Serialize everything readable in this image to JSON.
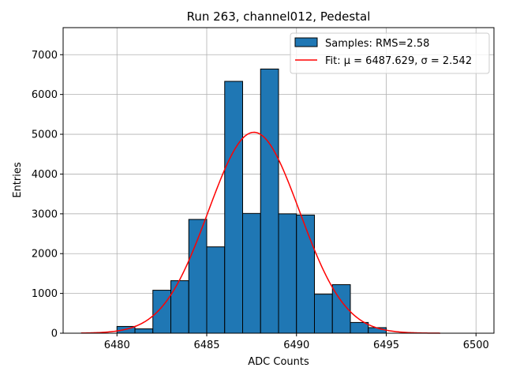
{
  "chart_data": {
    "type": "bar",
    "title": "Run 263, channel012, Pedestal",
    "xlabel": "ADC Counts",
    "ylabel": "Entries",
    "xlim": [
      6477,
      6501
    ],
    "ylim": [
      0,
      7680
    ],
    "xticks": [
      6480,
      6485,
      6490,
      6495,
      6500
    ],
    "yticks": [
      0,
      1000,
      2000,
      3000,
      4000,
      5000,
      6000,
      7000
    ],
    "grid": true,
    "legend_position": "top-right",
    "histogram": {
      "name": "Samples: RMS=2.58",
      "color": "#1f77b4",
      "edge_color": "#000000",
      "bin_width": 1,
      "bin_starts": [
        6480,
        6481,
        6482,
        6483,
        6484,
        6485,
        6486,
        6487,
        6488,
        6489,
        6490,
        6491,
        6492,
        6493,
        6494
      ],
      "counts": [
        170,
        110,
        1080,
        1320,
        2860,
        2170,
        6330,
        3010,
        6640,
        3000,
        2970,
        980,
        1220,
        270,
        140
      ]
    },
    "fit": {
      "name": "Fit: μ = 6487.629, σ = 2.542",
      "color": "#ff0000",
      "mu": 6487.629,
      "sigma": 2.542,
      "peak": 5050,
      "x_range": [
        6478,
        6498
      ]
    }
  }
}
